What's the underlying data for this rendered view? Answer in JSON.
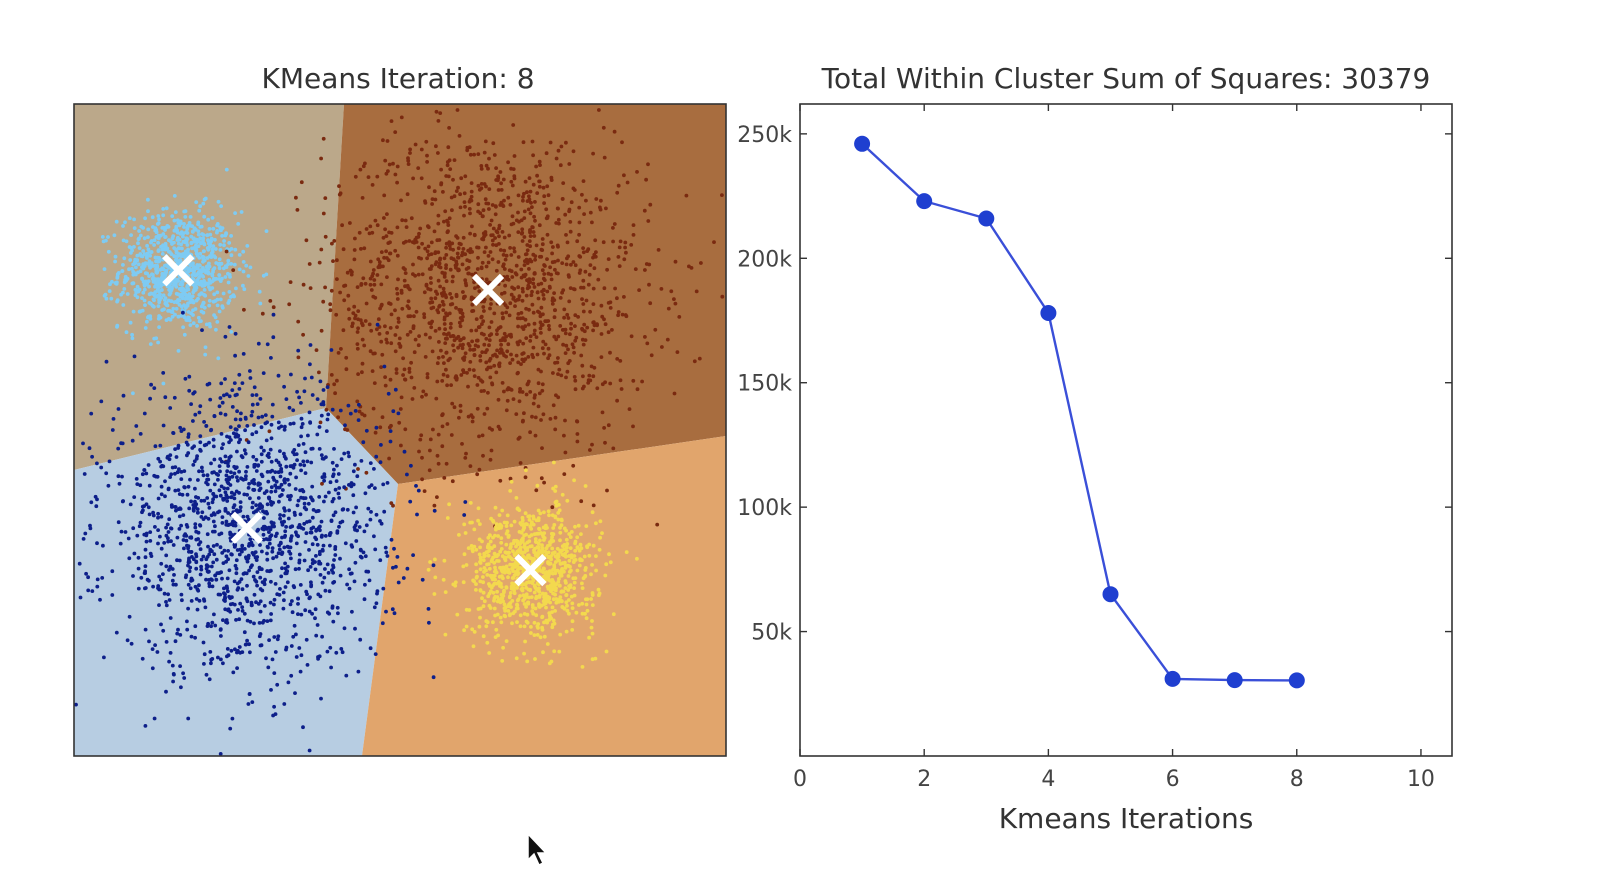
{
  "colors": {
    "region_tl": "#bba88a",
    "region_tr": "#a86d3f",
    "region_bl": "#b7cde2",
    "region_br": "#e1a56c",
    "cluster_lightblue": "#7ecbf3",
    "cluster_darkred": "#7a2a10",
    "cluster_navy": "#0d1f8a",
    "cluster_yellow": "#f3d94e",
    "centroid": "#ffffff",
    "line": "#3a4fd8",
    "marker": "#1f3fd0"
  },
  "chart_data": [
    {
      "type": "scatter",
      "title": "KMeans Iteration: 8",
      "xlabel": "",
      "ylabel": "",
      "axes_ticks": false,
      "clusters": [
        {
          "color": "#7ecbf3",
          "center": [
            -0.68,
            0.49
          ],
          "spread": 0.09,
          "points": 900
        },
        {
          "color": "#7a2a10",
          "center": [
            0.27,
            0.43
          ],
          "spread": 0.25,
          "points": 1500
        },
        {
          "color": "#0d1f8a",
          "center": [
            -0.47,
            -0.3
          ],
          "spread": 0.22,
          "points": 1500
        },
        {
          "color": "#f3d94e",
          "center": [
            0.4,
            -0.43
          ],
          "spread": 0.1,
          "points": 900
        }
      ],
      "centroids": [
        {
          "x": -0.68,
          "y": 0.49
        },
        {
          "x": 0.27,
          "y": 0.43
        },
        {
          "x": -0.47,
          "y": -0.3
        },
        {
          "x": 0.4,
          "y": -0.43
        }
      ]
    },
    {
      "type": "line",
      "title": "Total Within Cluster Sum of Squares: 30379",
      "xlabel": "Kmeans Iterations",
      "ylabel": "",
      "xlim": [
        0,
        10.5
      ],
      "ylim": [
        0,
        262000
      ],
      "xticks": [
        0,
        2,
        4,
        6,
        8,
        10
      ],
      "xtick_labels": [
        "0",
        "2",
        "4",
        "6",
        "8",
        "10"
      ],
      "yticks": [
        50000,
        100000,
        150000,
        200000,
        250000
      ],
      "ytick_labels": [
        "50k",
        "100k",
        "150k",
        "200k",
        "250k"
      ],
      "grid": false,
      "series": [
        {
          "x": [
            1,
            2,
            3,
            4,
            5,
            6,
            7,
            8
          ],
          "y": [
            246000,
            223000,
            216000,
            178000,
            65000,
            31000,
            30500,
            30379
          ]
        }
      ]
    }
  ]
}
